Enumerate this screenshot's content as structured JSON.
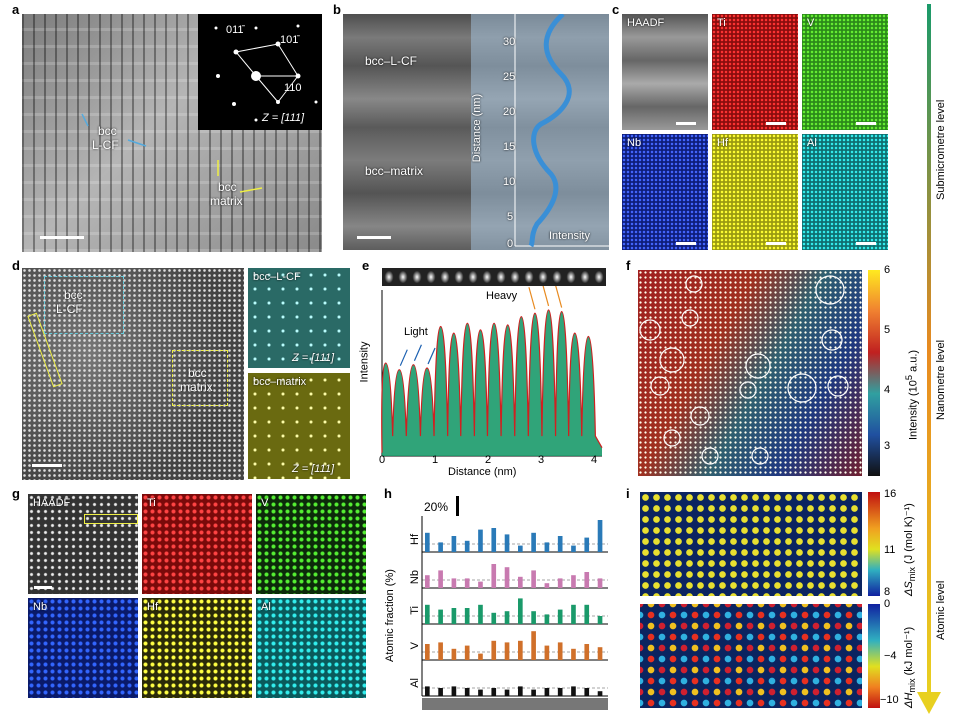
{
  "panels": {
    "a": {
      "label": "a",
      "diffraction": {
        "spots": [
          "011̄",
          "101̄",
          "110"
        ],
        "zone": "Z = [111]"
      },
      "annotations": [
        "bcc",
        "L-CF",
        "bcc",
        "matrix"
      ]
    },
    "b": {
      "label": "b",
      "regions": [
        "bcc–L-CF",
        "bcc–matrix"
      ],
      "ylabel": "Distance (nm)",
      "yticks": [
        "0",
        "5",
        "10",
        "15",
        "20",
        "25",
        "30"
      ],
      "legend": "Intensity"
    },
    "c": {
      "label": "c",
      "maps": [
        "HAADF",
        "Ti",
        "V",
        "Nb",
        "Hf",
        "Al"
      ]
    },
    "d": {
      "label": "d",
      "boxes": [
        "bcc",
        "L-CF",
        "bcc",
        "matrix"
      ],
      "insets": [
        {
          "title": "bcc–L-CF",
          "zone": "Z = [111]"
        },
        {
          "title": "bcc–matrix",
          "zone": "Z = [111]"
        }
      ]
    },
    "e": {
      "label": "e",
      "ylabel": "Intensity",
      "xlabel": "Distance (nm)",
      "xticks": [
        "0",
        "1",
        "2",
        "3",
        "4"
      ],
      "annotations": {
        "light": "Light",
        "heavy": "Heavy"
      }
    },
    "f": {
      "label": "f",
      "colorbar": {
        "label": "Intensity (10",
        "label_sup": "5",
        "label_end": " a.u.)",
        "ticks": [
          "6",
          "5",
          "4",
          "3"
        ]
      }
    },
    "g": {
      "label": "g",
      "maps": [
        "HAADF",
        "Ti",
        "V",
        "Nb",
        "Hf",
        "Al"
      ]
    },
    "h": {
      "label": "h",
      "scale": "20%",
      "ylabel": "Atomic fraction (%)",
      "elements": [
        "Hf",
        "Nb",
        "Ti",
        "V",
        "Al"
      ]
    },
    "i": {
      "label": "i",
      "top_colorbar": {
        "ticks": [
          "16",
          "11",
          "8"
        ],
        "label": "ΔS",
        "sub": "mix",
        "unit": " (J (mol K)⁻¹)"
      },
      "bottom_colorbar": {
        "ticks": [
          "0",
          "−4",
          "−10"
        ],
        "label": "ΔH",
        "sub": "mix",
        "unit": " (kJ mol⁻¹)"
      }
    }
  },
  "scale_arrow": {
    "levels": [
      "Submicrometre level",
      "Nanometre level",
      "Atomic level"
    ]
  },
  "chart_data": [
    {
      "type": "line",
      "panel": "e",
      "xlabel": "Distance (nm)",
      "ylabel": "Intensity",
      "xlim": [
        0,
        4.2
      ],
      "x": [
        0.07,
        0.33,
        0.6,
        0.86,
        1.12,
        1.37,
        1.63,
        1.88,
        2.14,
        2.4,
        2.66,
        2.92,
        3.18,
        3.43,
        3.68,
        3.94
      ],
      "values": [
        0.56,
        0.52,
        0.55,
        0.53,
        0.78,
        0.74,
        0.8,
        0.76,
        0.8,
        0.79,
        0.84,
        0.86,
        0.88,
        0.87,
        0.74,
        0.72
      ]
    },
    {
      "type": "bar",
      "panel": "h",
      "ylabel": "Atomic fraction (%)",
      "series": [
        {
          "name": "Hf",
          "values": [
            24,
            12,
            20,
            14,
            28,
            30,
            22,
            8,
            24,
            12,
            20,
            8,
            18,
            40
          ]
        },
        {
          "name": "Nb",
          "values": [
            16,
            22,
            12,
            12,
            8,
            30,
            26,
            14,
            22,
            6,
            12,
            16,
            20,
            12
          ]
        },
        {
          "name": "Ti",
          "values": [
            24,
            18,
            20,
            20,
            24,
            14,
            16,
            32,
            16,
            12,
            18,
            24,
            24,
            10
          ]
        },
        {
          "name": "V",
          "values": [
            20,
            22,
            14,
            18,
            8,
            24,
            22,
            24,
            36,
            18,
            22,
            14,
            20,
            16
          ]
        },
        {
          "name": "Al",
          "values": [
            12,
            10,
            12,
            10,
            8,
            10,
            8,
            12,
            8,
            10,
            10,
            12,
            10,
            6
          ]
        }
      ]
    }
  ]
}
